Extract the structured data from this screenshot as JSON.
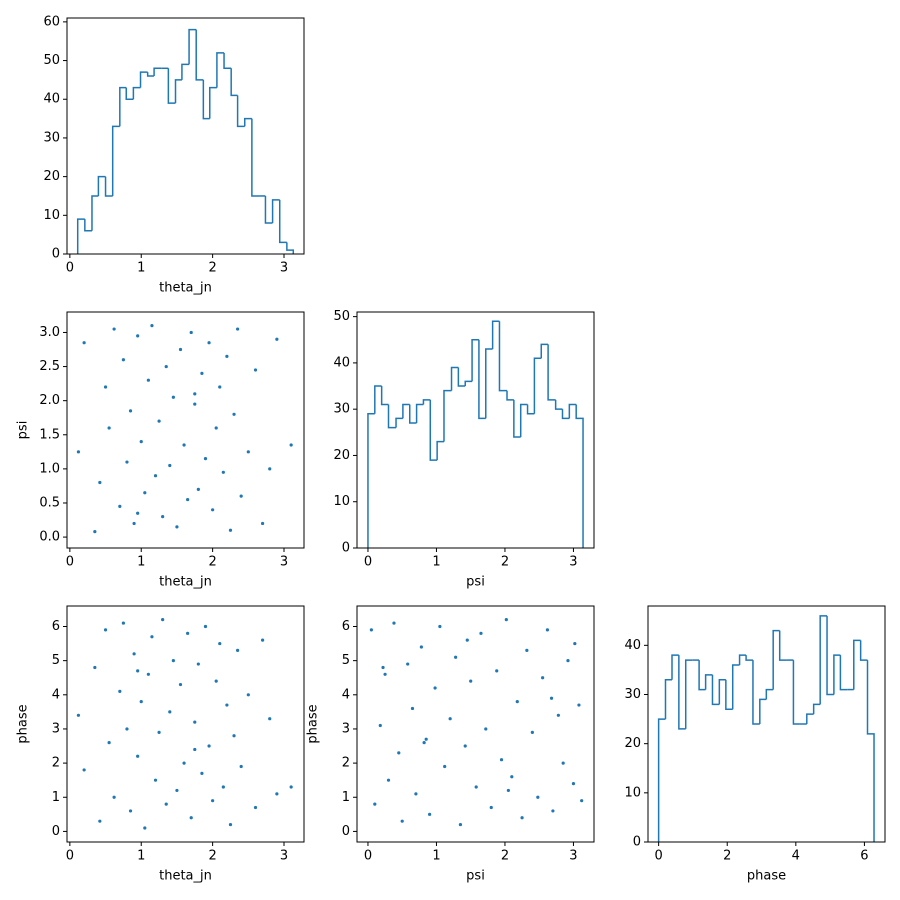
{
  "chart_data": [
    {
      "type": "hist",
      "xlabel": "theta_jn",
      "color": "#1f77b4",
      "bins": [
        0.11,
        0.21,
        0.31,
        0.4,
        0.5,
        0.6,
        0.7,
        0.79,
        0.89,
        0.99,
        1.09,
        1.18,
        1.28,
        1.38,
        1.48,
        1.57,
        1.67,
        1.77,
        1.87,
        1.96,
        2.06,
        2.16,
        2.26,
        2.35,
        2.45,
        2.55,
        2.65,
        2.74,
        2.84,
        2.94,
        3.04,
        3.13
      ],
      "counts": [
        9,
        6,
        15,
        20,
        15,
        33,
        43,
        40,
        43,
        47,
        46,
        48,
        48,
        39,
        45,
        49,
        58,
        45,
        35,
        43,
        52,
        48,
        41,
        33,
        35,
        15,
        15,
        8,
        14,
        3,
        1
      ],
      "xlim": [
        -0.04,
        3.28
      ],
      "xticks": [
        0,
        1,
        2,
        3
      ],
      "ylim": [
        0,
        61
      ],
      "yticks": [
        0,
        10,
        20,
        30,
        40,
        50,
        60
      ]
    },
    {
      "type": "scatter",
      "xlabel": "theta_jn",
      "ylabel": "psi",
      "color": "#1f77b4",
      "x": [
        0.12,
        0.2,
        0.35,
        0.42,
        0.5,
        0.55,
        0.62,
        0.7,
        0.75,
        0.8,
        0.85,
        0.9,
        0.95,
        1.0,
        1.05,
        1.1,
        1.15,
        1.2,
        1.25,
        1.3,
        1.35,
        1.4,
        1.45,
        1.5,
        1.55,
        1.6,
        1.65,
        1.7,
        1.75,
        1.8,
        1.85,
        1.9,
        1.95,
        2.0,
        2.05,
        2.1,
        2.15,
        2.2,
        2.25,
        2.3,
        2.35,
        2.4,
        2.5,
        2.6,
        2.7,
        2.8,
        2.9,
        3.1,
        0.95,
        1.75
      ],
      "y": [
        1.25,
        2.85,
        0.08,
        0.8,
        2.2,
        1.6,
        3.05,
        0.45,
        2.6,
        1.1,
        1.85,
        0.2,
        2.95,
        1.4,
        0.65,
        2.3,
        3.1,
        0.9,
        1.7,
        0.3,
        2.5,
        1.05,
        2.05,
        0.15,
        2.75,
        1.35,
        0.55,
        3.0,
        1.95,
        0.7,
        2.4,
        1.15,
        2.85,
        0.4,
        1.6,
        2.2,
        0.95,
        2.65,
        0.1,
        1.8,
        3.05,
        0.6,
        1.25,
        2.45,
        0.2,
        1.0,
        2.9,
        1.35,
        0.35,
        2.1
      ],
      "xlim": [
        -0.04,
        3.28
      ],
      "xticks": [
        0,
        1,
        2,
        3
      ],
      "ylim": [
        -0.16,
        3.3
      ],
      "yticks": [
        {
          "value": 0,
          "label": "0.0"
        },
        0.5,
        {
          "value": 1,
          "label": "1.0"
        },
        1.5,
        {
          "value": 2,
          "label": "2.0"
        },
        2.5,
        {
          "value": 3,
          "label": "3.0"
        }
      ]
    },
    {
      "type": "hist",
      "xlabel": "psi",
      "color": "#1f77b4",
      "bins": [
        0,
        0.1,
        0.2,
        0.3,
        0.41,
        0.51,
        0.61,
        0.71,
        0.81,
        0.91,
        1.01,
        1.11,
        1.22,
        1.32,
        1.42,
        1.52,
        1.62,
        1.72,
        1.82,
        1.92,
        2.03,
        2.13,
        2.23,
        2.33,
        2.43,
        2.53,
        2.63,
        2.74,
        2.84,
        2.94,
        3.04,
        3.14
      ],
      "counts": [
        29,
        35,
        31,
        26,
        28,
        31,
        27,
        31,
        32,
        19,
        23,
        34,
        39,
        35,
        36,
        45,
        28,
        43,
        49,
        34,
        32,
        24,
        31,
        29,
        41,
        44,
        32,
        30,
        28,
        31,
        28
      ],
      "xlim": [
        -0.16,
        3.3
      ],
      "xticks": [
        0,
        1,
        2,
        3
      ],
      "ylim": [
        0,
        51
      ],
      "yticks": [
        0,
        10,
        20,
        30,
        40,
        50
      ]
    },
    {
      "type": "scatter",
      "xlabel": "theta_jn",
      "ylabel": "phase",
      "color": "#1f77b4",
      "x": [
        0.12,
        0.2,
        0.35,
        0.42,
        0.5,
        0.55,
        0.62,
        0.7,
        0.75,
        0.8,
        0.85,
        0.9,
        0.95,
        1.0,
        1.05,
        1.1,
        1.15,
        1.2,
        1.25,
        1.3,
        1.35,
        1.4,
        1.45,
        1.5,
        1.55,
        1.6,
        1.65,
        1.7,
        1.75,
        1.8,
        1.85,
        1.9,
        1.95,
        2.0,
        2.05,
        2.1,
        2.15,
        2.2,
        2.25,
        2.3,
        2.35,
        2.4,
        2.5,
        2.6,
        2.7,
        2.8,
        2.9,
        3.1,
        0.95,
        1.75
      ],
      "y": [
        3.4,
        1.8,
        4.8,
        0.3,
        5.9,
        2.6,
        1.0,
        4.1,
        6.1,
        3.0,
        0.6,
        5.2,
        2.2,
        3.8,
        0.1,
        4.6,
        5.7,
        1.5,
        2.9,
        6.2,
        0.8,
        3.5,
        5.0,
        1.2,
        4.3,
        2.0,
        5.8,
        0.4,
        3.2,
        4.9,
        1.7,
        6.0,
        2.5,
        0.9,
        4.4,
        5.5,
        1.3,
        3.7,
        0.2,
        2.8,
        5.3,
        1.9,
        4.0,
        0.7,
        5.6,
        3.3,
        1.1,
        1.3,
        4.7,
        2.4
      ],
      "xlim": [
        -0.04,
        3.28
      ],
      "xticks": [
        0,
        1,
        2,
        3
      ],
      "ylim": [
        -0.31,
        6.6
      ],
      "yticks": [
        0,
        1,
        2,
        3,
        4,
        5,
        6
      ]
    },
    {
      "type": "scatter",
      "xlabel": "psi",
      "ylabel": "phase",
      "color": "#1f77b4",
      "x": [
        0.05,
        0.1,
        0.18,
        0.25,
        0.3,
        0.38,
        0.45,
        0.5,
        0.58,
        0.65,
        0.7,
        0.78,
        0.85,
        0.9,
        0.98,
        1.05,
        1.12,
        1.2,
        1.28,
        1.35,
        1.42,
        1.5,
        1.58,
        1.65,
        1.72,
        1.8,
        1.88,
        1.95,
        2.02,
        2.1,
        2.18,
        2.25,
        2.32,
        2.4,
        2.48,
        2.55,
        2.62,
        2.7,
        2.78,
        2.85,
        2.92,
        3.0,
        3.08,
        3.12,
        0.22,
        0.82,
        1.45,
        2.05,
        2.68,
        3.02
      ],
      "y": [
        5.9,
        0.8,
        3.1,
        4.6,
        1.5,
        6.1,
        2.3,
        0.3,
        4.9,
        3.6,
        1.1,
        5.4,
        2.7,
        0.5,
        4.2,
        6.0,
        1.9,
        3.3,
        5.1,
        0.2,
        2.5,
        4.4,
        1.3,
        5.8,
        3.0,
        0.7,
        4.7,
        2.1,
        6.2,
        1.6,
        3.8,
        0.4,
        5.3,
        2.9,
        1.0,
        4.5,
        5.9,
        0.6,
        3.4,
        2.0,
        5.0,
        1.4,
        3.7,
        0.9,
        4.8,
        2.6,
        5.6,
        1.2,
        3.9,
        5.5
      ],
      "xlim": [
        -0.16,
        3.3
      ],
      "xticks": [
        0,
        1,
        2,
        3
      ],
      "ylim": [
        -0.31,
        6.6
      ],
      "yticks": [
        0,
        1,
        2,
        3,
        4,
        5,
        6
      ]
    },
    {
      "type": "hist",
      "xlabel": "phase",
      "color": "#1f77b4",
      "bins": [
        0,
        0.2,
        0.39,
        0.59,
        0.79,
        0.98,
        1.18,
        1.37,
        1.57,
        1.77,
        1.96,
        2.16,
        2.36,
        2.55,
        2.75,
        2.95,
        3.14,
        3.34,
        3.53,
        3.73,
        3.93,
        4.12,
        4.32,
        4.52,
        4.71,
        4.91,
        5.11,
        5.3,
        5.5,
        5.69,
        5.89,
        6.09,
        6.28
      ],
      "counts": [
        25,
        33,
        38,
        23,
        37,
        37,
        31,
        34,
        28,
        33,
        27,
        36,
        38,
        37,
        24,
        29,
        31,
        43,
        37,
        37,
        24,
        24,
        26,
        28,
        46,
        30,
        38,
        31,
        31,
        41,
        37,
        22
      ],
      "xlim": [
        -0.31,
        6.6
      ],
      "xticks": [
        0,
        2,
        4,
        6
      ],
      "ylim": [
        0,
        48
      ],
      "yticks": [
        0,
        10,
        20,
        30,
        40
      ]
    }
  ]
}
